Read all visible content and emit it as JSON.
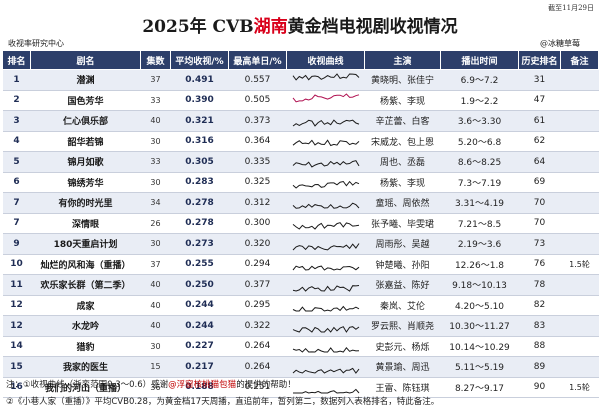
{
  "date": "截至11月29日",
  "title_prefix": "2025年 CVB",
  "title_highlight": "湖南",
  "title_suffix": "黄金档电视剧收视情况",
  "source_label": "收视率研究中心",
  "signature": "@冰糖草莓",
  "headers": [
    "排名",
    "剧名",
    "集数",
    "平均收视/%",
    "最高单日/%",
    "收视曲线",
    "主演",
    "播出时间",
    "历史排名",
    "备注"
  ],
  "rows": [
    {
      "rank": "1",
      "drama": "潜渊",
      "eps": "37",
      "avg": "0.491",
      "max": "0.557",
      "cast": "黄晓明、张佳宁",
      "period": "6.9～7.2",
      "hist": "31",
      "note": ""
    },
    {
      "rank": "2",
      "drama": "国色芳华",
      "eps": "33",
      "avg": "0.390",
      "max": "0.505",
      "cast": "杨紫、李现",
      "period": "1.9～2.2",
      "hist": "47",
      "note": ""
    },
    {
      "rank": "3",
      "drama": "仁心俱乐部",
      "eps": "40",
      "avg": "0.321",
      "max": "0.373",
      "cast": "辛芷蕾、白客",
      "period": "3.6～3.30",
      "hist": "61",
      "note": ""
    },
    {
      "rank": "4",
      "drama": "韶华若锦",
      "eps": "30",
      "avg": "0.316",
      "max": "0.364",
      "cast": "宋威龙、包上恩",
      "period": "5.20～6.8",
      "hist": "62",
      "note": ""
    },
    {
      "rank": "5",
      "drama": "锦月如歌",
      "eps": "33",
      "avg": "0.305",
      "max": "0.335",
      "cast": "周也、丞磊",
      "period": "8.6～8.25",
      "hist": "64",
      "note": ""
    },
    {
      "rank": "6",
      "drama": "锦绣芳华",
      "eps": "30",
      "avg": "0.283",
      "max": "0.325",
      "cast": "杨紫、李现",
      "period": "7.3～7.19",
      "hist": "69",
      "note": ""
    },
    {
      "rank": "7",
      "drama": "有你的时光里",
      "eps": "34",
      "avg": "0.278",
      "max": "0.312",
      "cast": "童瑶、周依然",
      "period": "3.31～4.19",
      "hist": "70",
      "note": ""
    },
    {
      "rank": "7",
      "drama": "深情眼",
      "eps": "26",
      "avg": "0.278",
      "max": "0.300",
      "cast": "张予曦、毕雯珺",
      "period": "7.21～8.5",
      "hist": "70",
      "note": ""
    },
    {
      "rank": "9",
      "drama": "180天重启计划",
      "eps": "30",
      "avg": "0.273",
      "max": "0.320",
      "cast": "周雨彤、吴越",
      "period": "2.19～3.6",
      "hist": "73",
      "note": ""
    },
    {
      "rank": "10",
      "drama": "灿烂的风和海（重播）",
      "eps": "37",
      "avg": "0.255",
      "max": "0.294",
      "cast": "钟楚曦、孙阳",
      "period": "12.26～1.8",
      "hist": "76",
      "note": "1.5轮"
    },
    {
      "rank": "11",
      "drama": "欢乐家长群（第二季）",
      "eps": "40",
      "avg": "0.250",
      "max": "0.377",
      "cast": "张嘉益、陈好",
      "period": "9.18～10.13",
      "hist": "78",
      "note": ""
    },
    {
      "rank": "12",
      "drama": "成家",
      "eps": "40",
      "avg": "0.244",
      "max": "0.295",
      "cast": "秦岚、艾伦",
      "period": "4.20～5.10",
      "hist": "82",
      "note": ""
    },
    {
      "rank": "12",
      "drama": "水龙吟",
      "eps": "40",
      "avg": "0.244",
      "max": "0.322",
      "cast": "罗云熙、肖顺尧",
      "period": "10.30～11.27",
      "hist": "83",
      "note": ""
    },
    {
      "rank": "14",
      "drama": "猎豹",
      "eps": "30",
      "avg": "0.227",
      "max": "0.264",
      "cast": "史彭元、杨烁",
      "period": "10.14～10.29",
      "hist": "88",
      "note": ""
    },
    {
      "rank": "15",
      "drama": "我家的医生",
      "eps": "15",
      "avg": "0.217",
      "max": "0.264",
      "cast": "黄景瑜、周迅",
      "period": "5.11～5.19",
      "hist": "89",
      "note": ""
    },
    {
      "rank": "16",
      "drama": "我们的河山（重播）",
      "eps": "36",
      "avg": "0.188",
      "max": "0.251",
      "cast": "王雷、陈钰琪",
      "period": "8.27～9.17",
      "hist": "90",
      "note": "1.5轮"
    }
  ],
  "curve_color": "#1a1a1a",
  "curve_highlight_color": "#b01050",
  "footer1_prefix": "注：①收视曲线（浙变范围0.3～0.6）感谢",
  "footer1_highlight": "@浮窗核桃猫包猫",
  "footer1_suffix": "的提供的帮助！",
  "footer2_prefix": "②《小巷人家（重播）》平均CVB0.28，为黄金档17天周播，直追前年，暂列第二，数据列入表格排名，特此备注。",
  "chart_data": {
    "type": "table",
    "title": "2025年 CVB湖南黄金档电视剧收视情况",
    "columns": [
      "排名",
      "剧名",
      "集数",
      "平均收视/%",
      "最高单日/%",
      "主演",
      "播出时间",
      "历史排名",
      "备注"
    ],
    "series": [
      {
        "name": "平均收视/%",
        "values": [
          0.491,
          0.39,
          0.321,
          0.316,
          0.305,
          0.283,
          0.278,
          0.278,
          0.273,
          0.255,
          0.25,
          0.244,
          0.244,
          0.227,
          0.217,
          0.188
        ]
      },
      {
        "name": "最高单日/%",
        "values": [
          0.557,
          0.505,
          0.373,
          0.364,
          0.335,
          0.325,
          0.312,
          0.3,
          0.32,
          0.294,
          0.377,
          0.295,
          0.322,
          0.264,
          0.264,
          0.251
        ]
      }
    ],
    "categories": [
      "潜渊",
      "国色芳华",
      "仁心俱乐部",
      "韶华若锦",
      "锦月如歌",
      "锦绣芳华",
      "有你的时光里",
      "深情眼",
      "180天重启计划",
      "灿烂的风和海（重播）",
      "欢乐家长群（第二季）",
      "成家",
      "水龙吟",
      "猎豹",
      "我家的医生",
      "我们的河山（重播）"
    ]
  }
}
